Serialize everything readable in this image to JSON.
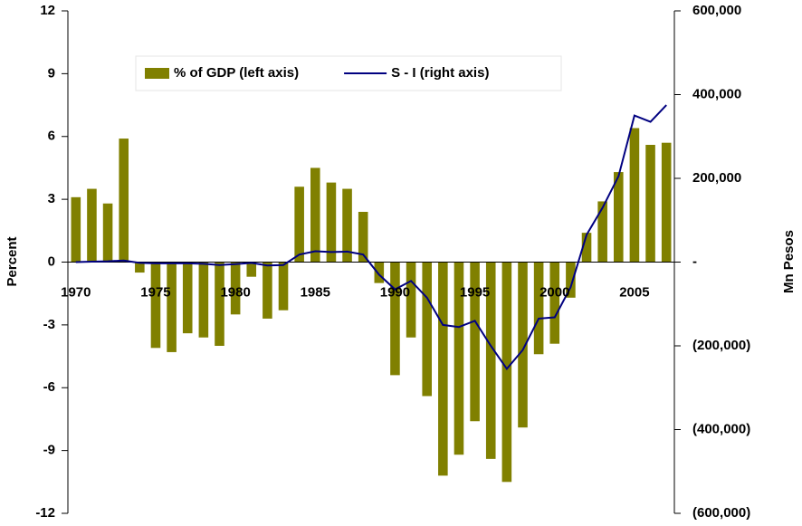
{
  "chart_data": {
    "type": "bar",
    "categories": [
      "1970",
      null,
      null,
      null,
      null,
      "1975",
      null,
      null,
      null,
      null,
      "1980",
      null,
      null,
      null,
      null,
      "1985",
      null,
      null,
      null,
      null,
      "1990",
      null,
      null,
      null,
      null,
      "1995",
      null,
      null,
      null,
      null,
      "2000",
      null,
      null,
      null,
      null,
      "2005",
      null,
      null
    ],
    "series": [
      {
        "name": "% of GDP (left axis)",
        "type": "bar",
        "color": "#808000",
        "values": [
          3.1,
          3.5,
          2.8,
          5.9,
          -0.5,
          -4.1,
          -4.3,
          -3.4,
          -3.6,
          -4.0,
          -2.5,
          -0.7,
          -2.7,
          -2.3,
          3.6,
          4.5,
          3.8,
          3.5,
          2.4,
          -1.0,
          -5.4,
          -3.6,
          -6.4,
          -10.2,
          -9.2,
          -7.6,
          -9.4,
          -10.5,
          -7.9,
          -4.4,
          -3.9,
          -1.7,
          1.4,
          2.9,
          4.3,
          6.4,
          5.6,
          5.7
        ]
      },
      {
        "name": "S - I (right axis)",
        "type": "line",
        "axis": "y2",
        "color": "#000080",
        "values": [
          0,
          1000,
          2000,
          4000,
          -2000,
          -3000,
          -3000,
          -3000,
          -4000,
          -7000,
          -5000,
          -2000,
          -8000,
          -7000,
          18000,
          26000,
          24000,
          25000,
          18000,
          -30000,
          -65000,
          -45000,
          -85000,
          -150000,
          -155000,
          -140000,
          -200000,
          -255000,
          -210000,
          -135000,
          -132000,
          -60000,
          65000,
          130000,
          205000,
          350000,
          335000,
          375000
        ]
      }
    ],
    "y_label": "Percent",
    "y2_label": "Mn Pesos",
    "ylim": [
      -12,
      12
    ],
    "yticks": [
      -12,
      -9,
      -6,
      -3,
      0,
      3,
      6,
      9,
      12
    ],
    "y2lim": [
      -600000,
      600000
    ],
    "y2ticks": [
      {
        "value": -600000,
        "label": "(600,000)"
      },
      {
        "value": -400000,
        "label": "(400,000)"
      },
      {
        "value": -200000,
        "label": "(200,000)"
      },
      {
        "value": 0,
        "label": "-"
      },
      {
        "value": 200000,
        "label": "200,000"
      },
      {
        "value": 400000,
        "label": "400,000"
      },
      {
        "value": 600000,
        "label": "600,000"
      }
    ],
    "grid": false,
    "legend": "top"
  }
}
